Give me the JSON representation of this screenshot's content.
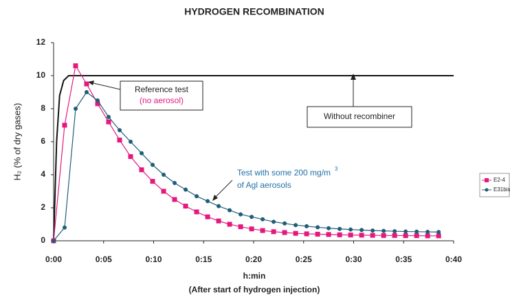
{
  "chart_data": {
    "type": "line",
    "title": "HYDROGEN RECOMBINATION",
    "y_label": "H₂ (% of dry gases)",
    "x_label": "h:min",
    "x_sublabel": "(After start of hydrogen injection)",
    "x": [
      0,
      1.1,
      2.2,
      3.3,
      4.4,
      5.5,
      6.6,
      7.7,
      8.8,
      9.9,
      11,
      12.1,
      13.2,
      14.3,
      15.4,
      16.5,
      17.6,
      18.7,
      19.8,
      20.9,
      22,
      23.1,
      24.2,
      25.3,
      26.4,
      27.5,
      28.6,
      29.7,
      30.8,
      31.9,
      33,
      34.1,
      35.2,
      36.3,
      37.4,
      38.5
    ],
    "series": [
      {
        "name": "E2-4",
        "color": "#e3197e",
        "marker": "square",
        "values": [
          0,
          7.0,
          10.6,
          9.5,
          8.3,
          7.2,
          6.1,
          5.1,
          4.3,
          3.6,
          3.0,
          2.5,
          2.1,
          1.75,
          1.45,
          1.2,
          1.0,
          0.85,
          0.72,
          0.62,
          0.55,
          0.5,
          0.45,
          0.42,
          0.4,
          0.38,
          0.36,
          0.35,
          0.34,
          0.33,
          0.32,
          0.32,
          0.31,
          0.31,
          0.3,
          0.3
        ]
      },
      {
        "name": "E31bis",
        "color": "#1f5e78",
        "marker": "circle",
        "values": [
          0,
          0.8,
          8.0,
          9.0,
          8.5,
          7.5,
          6.7,
          6.0,
          5.3,
          4.6,
          4.0,
          3.5,
          3.1,
          2.7,
          2.4,
          2.1,
          1.85,
          1.6,
          1.45,
          1.3,
          1.15,
          1.05,
          0.95,
          0.88,
          0.82,
          0.76,
          0.72,
          0.68,
          0.65,
          0.62,
          0.6,
          0.58,
          0.56,
          0.55,
          0.54,
          0.53
        ]
      }
    ],
    "reference_line": {
      "color": "#111111",
      "x": [
        0,
        0.3,
        0.6,
        1,
        1.5,
        40
      ],
      "values": [
        0,
        6,
        8.8,
        9.7,
        10,
        10
      ]
    },
    "annotations": [
      "Reference test",
      "(no aerosol)",
      "Without recombiner",
      "Test with some 200 mg/m",
      "3",
      "of Agl aerosols"
    ],
    "xlim": [
      0,
      40
    ],
    "xticks": [
      {
        "value": 0,
        "label": "0:00"
      },
      {
        "value": 5,
        "label": "0:05"
      },
      {
        "value": 10,
        "label": "0:10"
      },
      {
        "value": 15,
        "label": "0:15"
      },
      {
        "value": 20,
        "label": "0:20"
      },
      {
        "value": 25,
        "label": "0:25"
      },
      {
        "value": 30,
        "label": "0:30"
      },
      {
        "value": 35,
        "label": "0:35"
      },
      {
        "value": 40,
        "label": "0:40"
      }
    ],
    "ylim": [
      0,
      12
    ],
    "yticks": [
      0,
      2,
      4,
      6,
      8,
      10,
      12
    ],
    "grid": false,
    "legend": "right"
  }
}
